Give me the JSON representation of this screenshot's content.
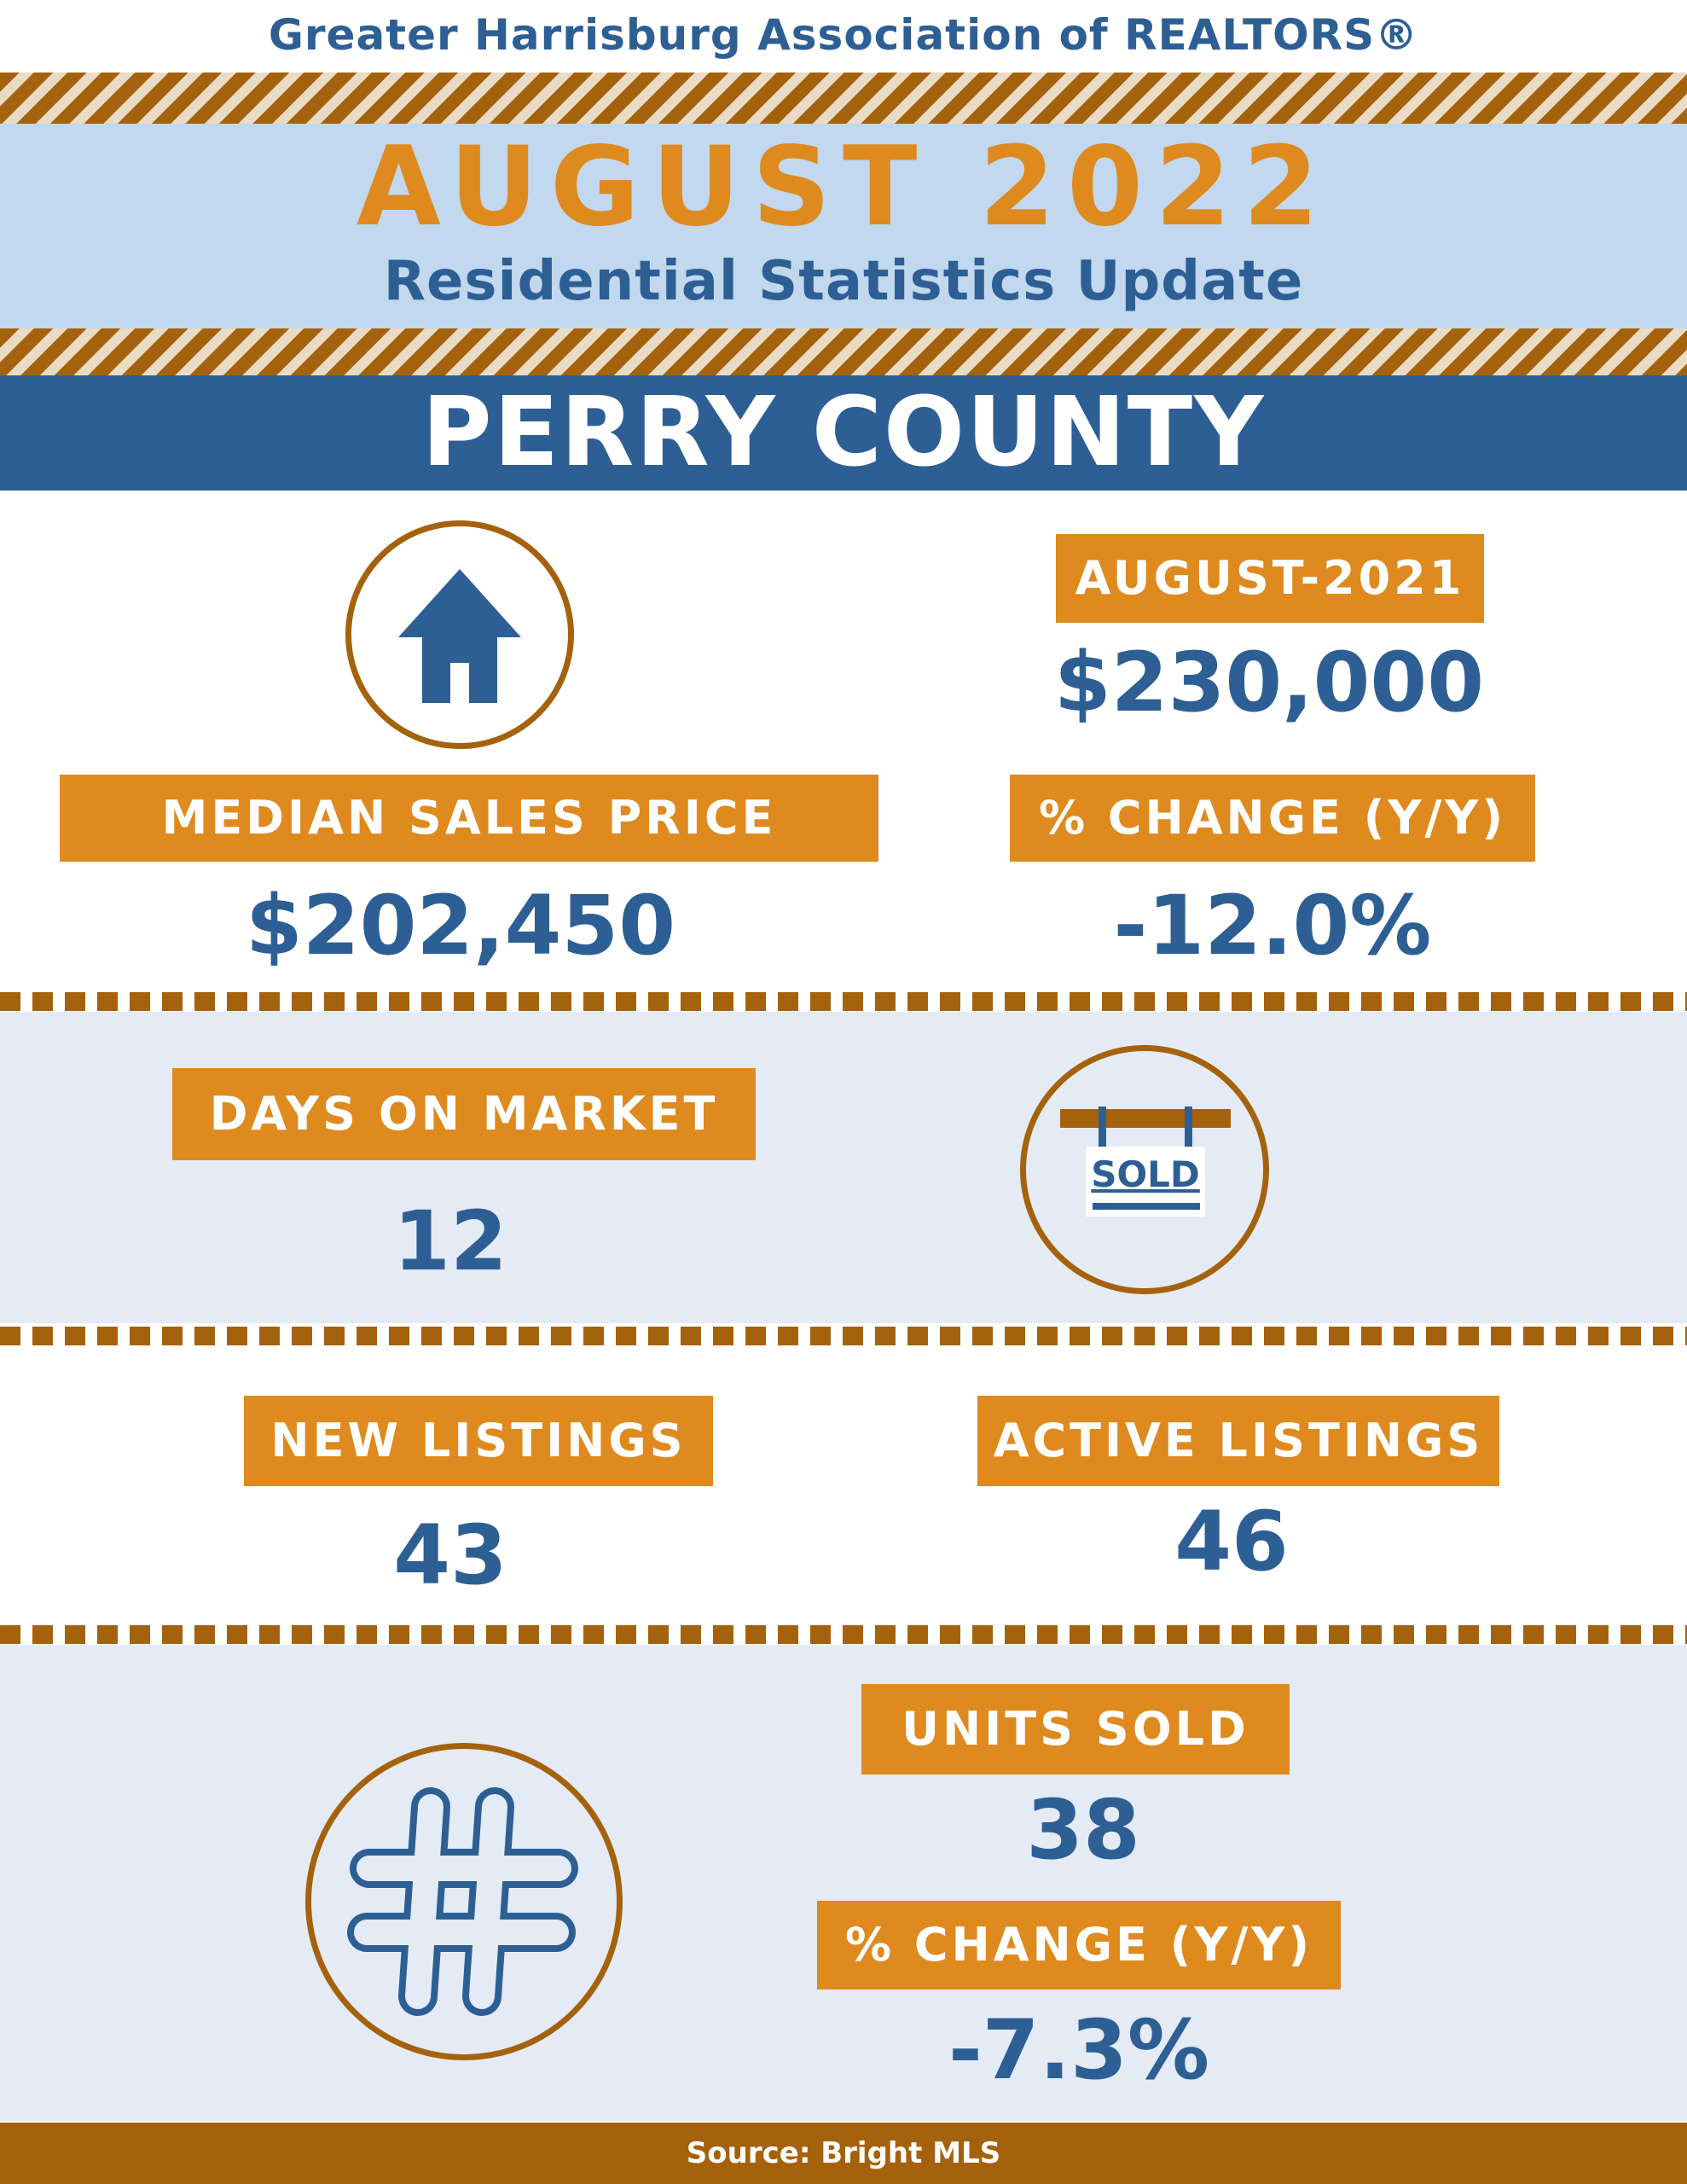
{
  "header": {
    "organization": "Greater Harrisburg Association of REALTORS®",
    "month": "AUGUST 2022",
    "subtitle": "Residential Statistics Update",
    "county": "PERRY COUNTY"
  },
  "colors": {
    "navy": "#2d5f94",
    "orange": "#de8a1f",
    "brown": "#a5620c",
    "light_blue": "#c1d8ee",
    "pale_blue": "#e4ebf5"
  },
  "icons": {
    "house": "house-icon",
    "sold_sign": "sold-sign-icon",
    "hashtag": "hashtag-icon"
  },
  "median_price": {
    "label": "MEDIAN SALES PRICE",
    "value": "$202,450",
    "prior_label": "AUGUST-2021",
    "prior_value": "$230,000",
    "change_label": "% CHANGE (Y/Y)",
    "change_value": "-12.0%"
  },
  "days_on_market": {
    "label": "DAYS ON MARKET",
    "value": "12",
    "sign_text": "SOLD"
  },
  "listings": {
    "new_label": "NEW LISTINGS",
    "new_value": "43",
    "active_label": "ACTIVE LISTINGS",
    "active_value": "46"
  },
  "units_sold": {
    "label": "UNITS SOLD",
    "value": "38",
    "change_label": "% CHANGE (Y/Y)",
    "change_value": "-7.3%"
  },
  "footer": {
    "source": "Source: Bright MLS"
  }
}
